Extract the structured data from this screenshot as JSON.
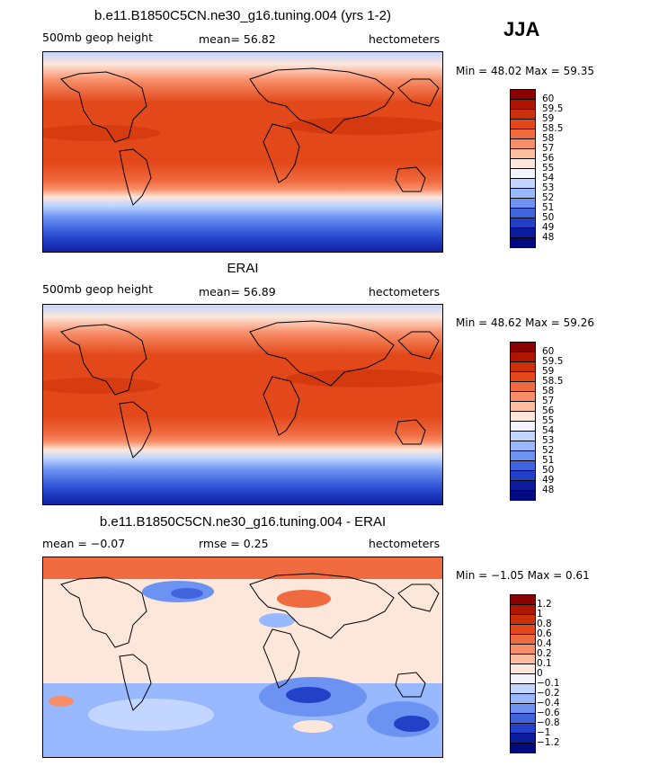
{
  "season": "JJA",
  "panels": [
    {
      "title": "b.e11.B1850C5CN.ne30_g16.tuning.004 (yrs 1-2)",
      "left_label": "500mb geop height",
      "center_label": "mean=  56.82",
      "units": "hectometers",
      "minmax": "Min =  48.02 Max =  59.35",
      "levels": [
        "60",
        "59.5",
        "59",
        "58.5",
        "58",
        "57",
        "56",
        "55",
        "54",
        "53",
        "52",
        "51",
        "50",
        "49",
        "48"
      ]
    },
    {
      "title": "ERAI",
      "left_label": "500mb geop height",
      "center_label": "mean=  56.89",
      "units": "hectometers",
      "minmax": "Min =  48.62 Max =  59.26",
      "levels": [
        "60",
        "59.5",
        "59",
        "58.5",
        "58",
        "57",
        "56",
        "55",
        "54",
        "53",
        "52",
        "51",
        "50",
        "49",
        "48"
      ]
    },
    {
      "title": "b.e11.B1850C5CN.ne30_g16.tuning.004 - ERAI",
      "left_label": "mean =  −0.07",
      "center_label": "rmse =   0.25",
      "units": "hectometers",
      "minmax": "Min =  −1.05 Max =   0.61",
      "levels": [
        "1.2",
        "1",
        "0.8",
        "0.6",
        "0.4",
        "0.2",
        "0.1",
        "0",
        "−0.1",
        "−0.2",
        "−0.4",
        "−0.6",
        "−0.8",
        "−1",
        "−1.2"
      ]
    }
  ],
  "colors": {
    "scale": [
      "#8a0000",
      "#b01500",
      "#cc3008",
      "#e2481a",
      "#f06a40",
      "#f88e68",
      "#fcbc9e",
      "#fde6da",
      "#f4f4ff",
      "#c2d6ff",
      "#98b8ff",
      "#6c93f2",
      "#3f64de",
      "#2240c8",
      "#0c1c9c",
      "#000a80"
    ]
  }
}
